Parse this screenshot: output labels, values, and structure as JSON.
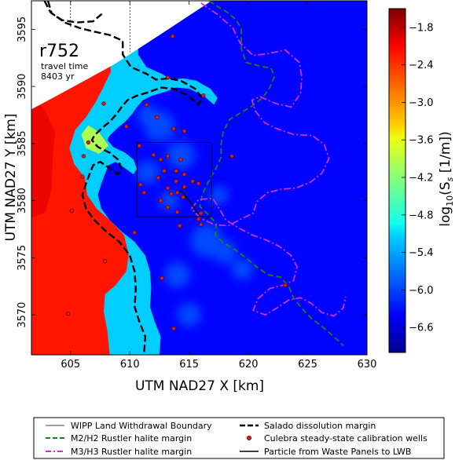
{
  "chart_data": {
    "type": "heatmap",
    "title": "",
    "xlabel": "UTM NAD27 X [km]",
    "ylabel": "UTM NAD27 Y [km]",
    "xlim": [
      601.7,
      630
    ],
    "ylim": [
      3566.5,
      3597.5
    ],
    "x_ticks": [
      605,
      610,
      615,
      620,
      625,
      630
    ],
    "y_ticks": [
      3570,
      3575,
      3580,
      3585,
      3590,
      3595
    ],
    "x_tick_labels": [
      "605",
      "610",
      "615",
      "620",
      "625",
      "630"
    ],
    "y_tick_labels": [
      "3570",
      "3575",
      "3580",
      "3585",
      "3590",
      "3595"
    ],
    "realization": "r752",
    "annotation_lines": [
      "travel time",
      "8403 yr"
    ],
    "colorbar": {
      "label": "log10(Ss [1/m])",
      "label_main": "log",
      "label_sub": "10",
      "label_rest": "(S",
      "label_sub2": "s",
      "label_tail": " [1/m])",
      "vmin": -7.0,
      "vmax": -1.5,
      "ticks": [
        -1.8,
        -2.4,
        -3.0,
        -3.6,
        -4.2,
        -4.8,
        -5.4,
        -6.0,
        -6.6
      ],
      "tick_labels": [
        "−1.8",
        "−2.4",
        "−3.0",
        "−3.6",
        "−4.2",
        "−4.8",
        "−5.4",
        "−6.0",
        "−6.6"
      ]
    },
    "field_zones": [
      {
        "name": "low-storativity-interior",
        "value": -6.3
      },
      {
        "name": "medium-band-west",
        "value": -5.2
      },
      {
        "name": "high-storativity-west",
        "value": -2.3
      },
      {
        "name": "green-patch",
        "value": -4.0
      }
    ],
    "wipp_lwb": {
      "xmin": 610.6,
      "xmax": 616.9,
      "ymin": 3578.6,
      "ymax": 3585.1
    },
    "wells": [
      [
        613.6,
        3594.4
      ],
      [
        613.2,
        3590.8
      ],
      [
        611.4,
        3588.4
      ],
      [
        609.7,
        3586.5
      ],
      [
        612.3,
        3587.3
      ],
      [
        613.7,
        3586.3
      ],
      [
        614.6,
        3586.1
      ],
      [
        616.2,
        3589.2
      ],
      [
        610.8,
        3584.8
      ],
      [
        612.0,
        3584.0
      ],
      [
        612.6,
        3583.6
      ],
      [
        613.2,
        3583.9
      ],
      [
        614.3,
        3583.6
      ],
      [
        613.9,
        3582.6
      ],
      [
        614.6,
        3582.3
      ],
      [
        612.9,
        3582.6
      ],
      [
        612.4,
        3582.0
      ],
      [
        613.9,
        3581.7
      ],
      [
        613.2,
        3581.1
      ],
      [
        614.6,
        3581.2
      ],
      [
        615.3,
        3581.7
      ],
      [
        615.8,
        3581.5
      ],
      [
        614.0,
        3580.7
      ],
      [
        613.5,
        3580.6
      ],
      [
        614.5,
        3580.3
      ],
      [
        612.6,
        3580.0
      ],
      [
        611.2,
        3580.7
      ],
      [
        610.9,
        3581.4
      ],
      [
        616.0,
        3578.9
      ],
      [
        615.8,
        3578.4
      ],
      [
        616.0,
        3577.9
      ],
      [
        614.2,
        3577.8
      ],
      [
        614.0,
        3579.0
      ],
      [
        613.2,
        3579.4
      ],
      [
        618.6,
        3583.9
      ],
      [
        610.4,
        3577.2
      ],
      [
        606.0,
        3582.1
      ],
      [
        605.1,
        3579.1
      ],
      [
        607.9,
        3574.7
      ],
      [
        604.8,
        3570.1
      ],
      [
        606.1,
        3583.9
      ],
      [
        606.5,
        3585.1
      ],
      [
        607.8,
        3588.5
      ],
      [
        612.7,
        3573.2
      ],
      [
        613.7,
        3568.8
      ],
      [
        623.1,
        3572.6
      ]
    ],
    "particle_path": [
      [
        614.2,
        3580.9
      ],
      [
        614.5,
        3580.7
      ],
      [
        614.7,
        3580.4
      ],
      [
        615.0,
        3580.0
      ],
      [
        615.3,
        3579.6
      ],
      [
        615.6,
        3579.1
      ],
      [
        615.8,
        3578.8
      ]
    ],
    "salado_margin": [
      [
        602.8,
        3597.5
      ],
      [
        603.3,
        3596.5
      ],
      [
        604.5,
        3595.6
      ],
      [
        605.8,
        3595.1
      ],
      [
        607.0,
        3594.8
      ],
      [
        608.3,
        3594.5
      ],
      [
        609.4,
        3594.0
      ],
      [
        609.4,
        3592.8
      ],
      [
        610.1,
        3591.7
      ],
      [
        611.4,
        3591.1
      ],
      [
        612.2,
        3590.6
      ],
      [
        613.2,
        3590.7
      ],
      [
        614.3,
        3590.5
      ],
      [
        615.5,
        3589.8
      ],
      [
        616.1,
        3589.0
      ],
      [
        615.8,
        3588.4
      ],
      [
        614.9,
        3589.2
      ],
      [
        613.7,
        3589.8
      ],
      [
        612.6,
        3589.9
      ],
      [
        611.6,
        3589.5
      ],
      [
        610.6,
        3589.2
      ],
      [
        609.8,
        3588.8
      ],
      [
        609.3,
        3588.2
      ],
      [
        608.9,
        3587.6
      ],
      [
        608.3,
        3586.9
      ],
      [
        607.7,
        3586.4
      ],
      [
        607.0,
        3585.7
      ],
      [
        606.8,
        3585.3
      ],
      [
        607.3,
        3584.7
      ],
      [
        608.3,
        3584.2
      ],
      [
        609.0,
        3583.6
      ],
      [
        609.3,
        3582.8
      ],
      [
        609.0,
        3582.3
      ],
      [
        608.2,
        3582.9
      ],
      [
        607.5,
        3583.4
      ],
      [
        606.9,
        3583.1
      ],
      [
        606.6,
        3582.3
      ],
      [
        606.3,
        3581.5
      ],
      [
        606.0,
        3580.5
      ],
      [
        606.3,
        3579.3
      ],
      [
        607.0,
        3578.3
      ],
      [
        608.0,
        3577.3
      ],
      [
        609.1,
        3576.4
      ],
      [
        610.0,
        3575.2
      ],
      [
        610.4,
        3573.8
      ],
      [
        610.5,
        3572.3
      ],
      [
        610.4,
        3570.7
      ],
      [
        610.8,
        3569.4
      ],
      [
        611.3,
        3568.1
      ],
      [
        611.2,
        3566.5
      ]
    ],
    "m2h2_margin": [
      [
        616.7,
        3597.5
      ],
      [
        617.4,
        3597.0
      ],
      [
        618.2,
        3596.5
      ],
      [
        618.9,
        3595.9
      ],
      [
        619.4,
        3595.1
      ],
      [
        619.4,
        3594.2
      ],
      [
        619.4,
        3593.3
      ],
      [
        619.8,
        3592.1
      ],
      [
        620.9,
        3591.8
      ],
      [
        621.9,
        3591.6
      ],
      [
        622.2,
        3590.9
      ],
      [
        621.8,
        3589.9
      ],
      [
        621.2,
        3589.0
      ],
      [
        620.2,
        3588.2
      ],
      [
        619.2,
        3587.6
      ],
      [
        618.4,
        3587.1
      ],
      [
        617.9,
        3586.1
      ],
      [
        617.7,
        3585.0
      ],
      [
        617.7,
        3583.8
      ],
      [
        617.2,
        3582.7
      ],
      [
        616.6,
        3581.6
      ],
      [
        616.1,
        3580.5
      ],
      [
        615.9,
        3579.5
      ],
      [
        616.6,
        3578.8
      ],
      [
        617.3,
        3578.0
      ],
      [
        617.2,
        3577.0
      ],
      [
        617.9,
        3576.3
      ],
      [
        618.9,
        3575.7
      ],
      [
        619.9,
        3574.9
      ],
      [
        620.8,
        3574.1
      ],
      [
        621.7,
        3573.5
      ],
      [
        622.7,
        3573.3
      ],
      [
        623.4,
        3572.5
      ],
      [
        623.8,
        3571.5
      ],
      [
        624.4,
        3570.7
      ],
      [
        625.3,
        3569.7
      ],
      [
        626.3,
        3568.9
      ],
      [
        627.2,
        3568.1
      ],
      [
        628.0,
        3567.3
      ]
    ],
    "m3h3_margin": [
      [
        616.0,
        3597.3
      ],
      [
        617.4,
        3596.3
      ],
      [
        618.7,
        3595.1
      ],
      [
        619.3,
        3593.8
      ],
      [
        620.4,
        3592.7
      ],
      [
        621.8,
        3592.9
      ],
      [
        623.1,
        3593.2
      ],
      [
        624.3,
        3592.1
      ],
      [
        624.5,
        3590.8
      ],
      [
        624.4,
        3589.4
      ],
      [
        623.6,
        3588.2
      ],
      [
        622.3,
        3588.5
      ],
      [
        621.0,
        3589.1
      ],
      [
        620.3,
        3588.8
      ],
      [
        620.6,
        3587.8
      ],
      [
        621.4,
        3586.8
      ],
      [
        622.4,
        3586.3
      ],
      [
        623.8,
        3585.8
      ],
      [
        625.4,
        3585.7
      ],
      [
        626.4,
        3584.9
      ],
      [
        626.8,
        3583.7
      ],
      [
        626.2,
        3582.4
      ],
      [
        625.2,
        3581.6
      ],
      [
        624.0,
        3581.1
      ],
      [
        622.8,
        3581.0
      ],
      [
        621.6,
        3580.7
      ],
      [
        620.7,
        3579.9
      ],
      [
        620.4,
        3578.9
      ],
      [
        619.4,
        3578.4
      ],
      [
        618.3,
        3577.8
      ],
      [
        617.1,
        3577.9
      ],
      [
        615.9,
        3578.5
      ],
      [
        615.2,
        3579.3
      ],
      [
        615.8,
        3580.1
      ],
      [
        617.0,
        3580.2
      ],
      [
        617.6,
        3579.2
      ],
      [
        618.1,
        3578.3
      ],
      [
        619.2,
        3577.6
      ],
      [
        620.3,
        3577.0
      ],
      [
        621.4,
        3576.6
      ],
      [
        622.6,
        3576.0
      ],
      [
        623.6,
        3575.2
      ],
      [
        624.1,
        3574.2
      ],
      [
        623.8,
        3573.0
      ],
      [
        622.9,
        3572.6
      ],
      [
        621.8,
        3572.3
      ],
      [
        620.8,
        3571.4
      ],
      [
        620.4,
        3570.4
      ],
      [
        621.4,
        3570.0
      ],
      [
        622.4,
        3570.6
      ],
      [
        623.4,
        3571.3
      ],
      [
        624.4,
        3571.5
      ],
      [
        625.3,
        3571.0
      ],
      [
        626.2,
        3570.2
      ],
      [
        627.2,
        3569.9
      ],
      [
        628.0,
        3570.6
      ],
      [
        628.2,
        3571.6
      ]
    ]
  },
  "legend": {
    "items": [
      {
        "label": "WIPP Land Withdrawal Boundary"
      },
      {
        "label": "Salado dissolution margin"
      },
      {
        "label": "M2/H2 Rustler halite margin"
      },
      {
        "label": "Culebra steady-state calibration wells"
      },
      {
        "label": "M3/H3 Rustler halite margin"
      },
      {
        "label": "Particle from Waste Panels to LWB"
      }
    ]
  },
  "colors": {
    "salado": "#000000",
    "m2h2": "#1e7d1e",
    "m3h3": "#cc33cc",
    "well_fill": "#d62020",
    "well_edge": "#5a0000",
    "lwb": "#000000"
  }
}
